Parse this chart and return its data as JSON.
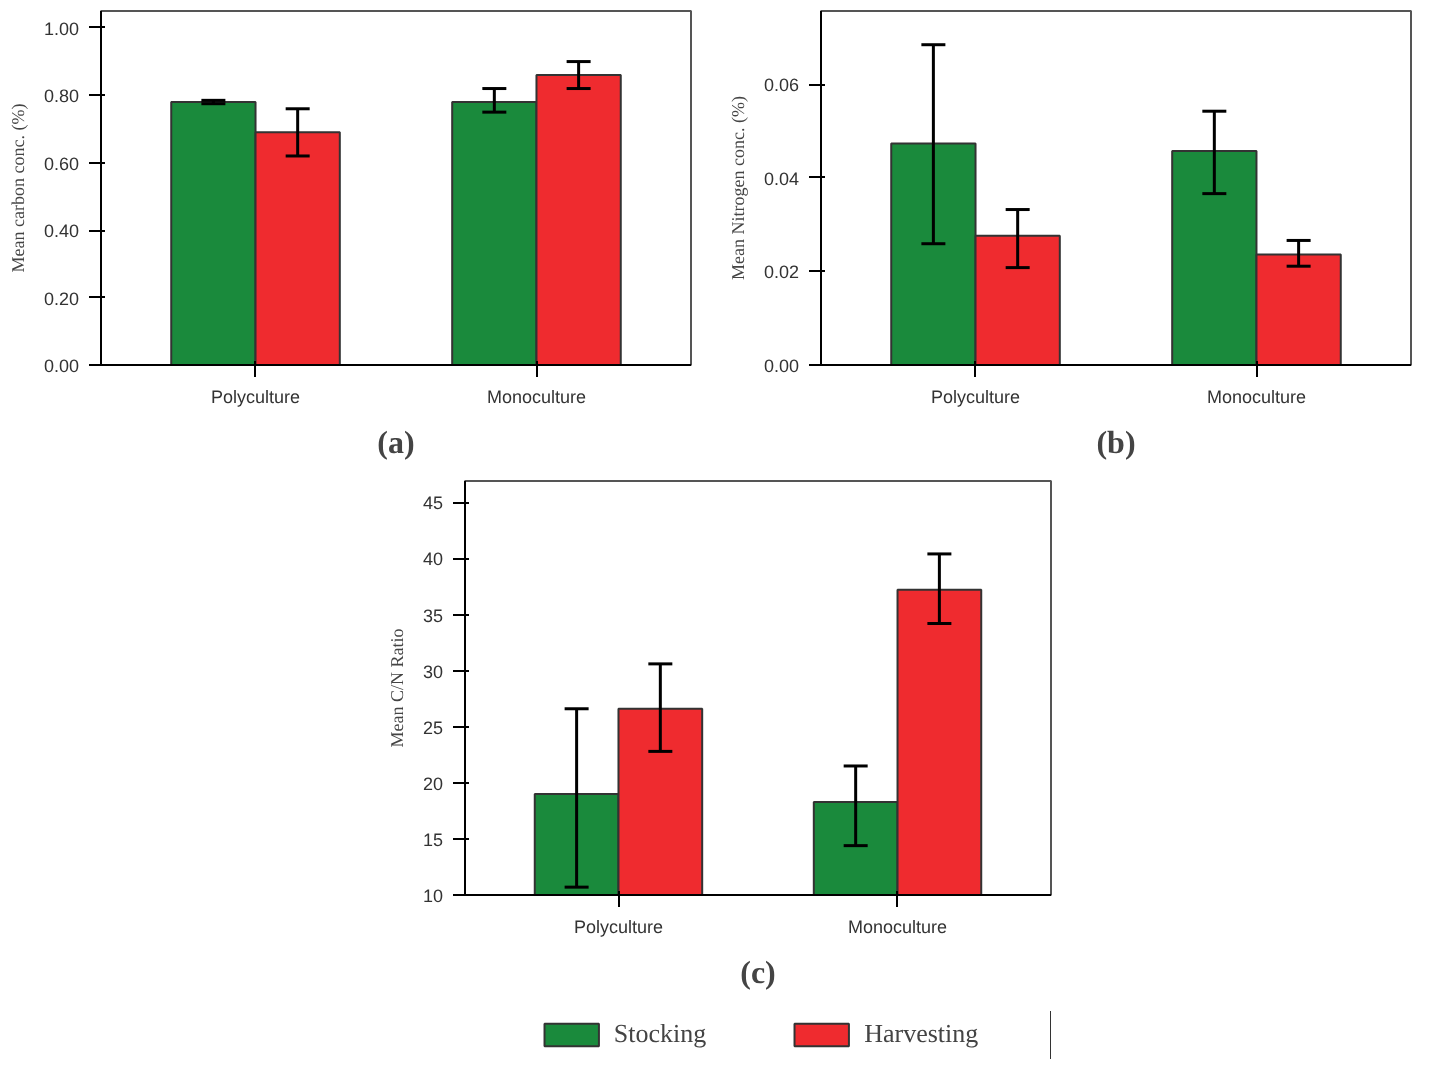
{
  "chart_data": [
    {
      "type": "bar",
      "title": "(a)",
      "ylabel": "Mean carbon conc. (%)",
      "categories": [
        "Polyculture",
        "Monoculture"
      ],
      "ylim": [
        0,
        1.05
      ],
      "yticks": [
        {
          "value": 0,
          "label": "0.00"
        },
        {
          "value": 0.2,
          "label": "0.20"
        },
        {
          "value": 0.4,
          "label": "0.40"
        },
        {
          "value": 0.6,
          "label": "0.60"
        },
        {
          "value": 0.8,
          "label": "0.80"
        },
        {
          "value": 1.0,
          "label": "1.00"
        }
      ],
      "grid": false,
      "series": [
        {
          "color": "#1a8a3c",
          "values": [
            0.78,
            0.78
          ],
          "errors": [
            [
              0.775,
              0.785
            ],
            [
              0.75,
              0.82
            ]
          ]
        },
        {
          "color": "#ef2b2f",
          "values": [
            0.69,
            0.86
          ],
          "errors": [
            [
              0.62,
              0.76
            ],
            [
              0.82,
              0.9
            ]
          ]
        }
      ]
    },
    {
      "type": "bar",
      "title": "(b)",
      "ylabel": "Mean Nitrogen conc. (%)",
      "categories": [
        "Polyculture",
        "Monoculture"
      ],
      "ylim": [
        0,
        0.0756
      ],
      "yticks": [
        {
          "value": 0,
          "label": "0.00"
        },
        {
          "value": 0.02,
          "label": "0.02"
        },
        {
          "value": 0.04,
          "label": "0.04"
        },
        {
          "value": 0.06,
          "label": "0.06"
        }
      ],
      "grid": false,
      "series": [
        {
          "color": "#1a8a3c",
          "values": [
            0.0473,
            0.0457
          ],
          "errors": [
            [
              0.0259,
              0.0684
            ],
            [
              0.0366,
              0.0542
            ]
          ]
        },
        {
          "color": "#ef2b2f",
          "values": [
            0.0276,
            0.0236
          ],
          "errors": [
            [
              0.0208,
              0.0332
            ],
            [
              0.0211,
              0.0266
            ]
          ]
        }
      ]
    },
    {
      "type": "bar",
      "title": "(c)",
      "ylabel": "Mean C/N Ratio",
      "categories": [
        "Polyculture",
        "Monoculture"
      ],
      "ylim": [
        10,
        46.9
      ],
      "yticks": [
        10,
        15,
        20,
        25,
        30,
        35,
        40,
        45
      ],
      "grid": false,
      "legend": "bottom",
      "series": [
        {
          "name": "Stocking",
          "color": "#1a8a3c",
          "values": [
            19.0,
            18.3
          ],
          "errors": [
            [
              10.7,
              26.6
            ],
            [
              14.4,
              21.5
            ]
          ]
        },
        {
          "name": "Harvesting",
          "color": "#ef2b2f",
          "values": [
            26.6,
            37.2
          ],
          "errors": [
            [
              22.8,
              30.6
            ],
            [
              34.2,
              40.4
            ]
          ]
        }
      ]
    }
  ]
}
